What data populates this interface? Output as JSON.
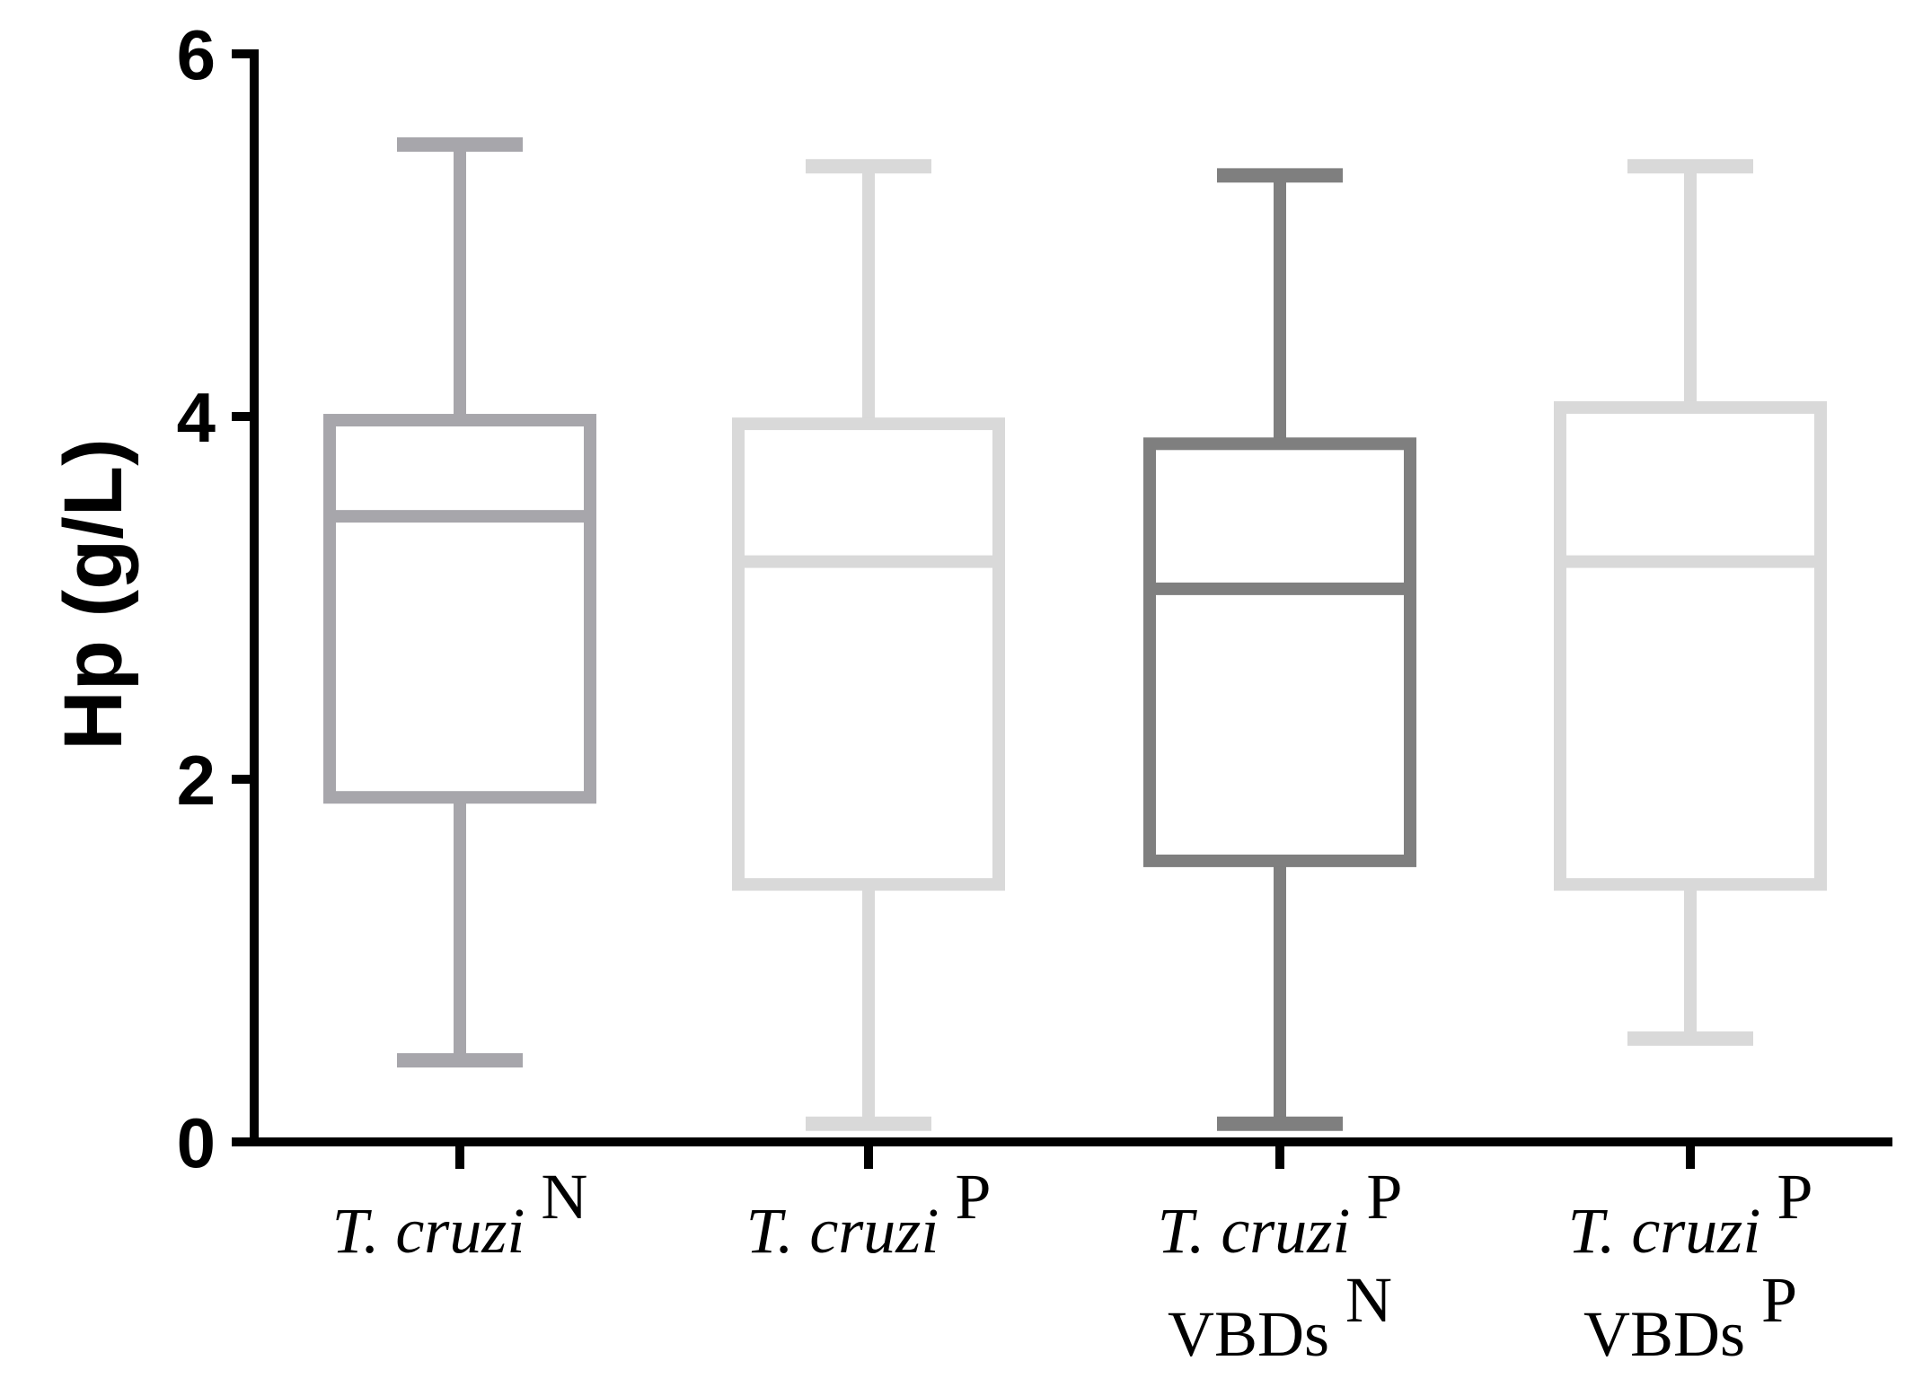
{
  "chart_data": {
    "type": "box",
    "ylabel": "Hp (g/L)",
    "ylim": [
      0,
      6
    ],
    "yticks": [
      "0",
      "2",
      "4",
      "6"
    ],
    "categories": [
      {
        "line1_italic": "T. cruzi",
        "line1_sup": "N",
        "line2": "",
        "line2_sup": ""
      },
      {
        "line1_italic": "T. cruzi",
        "line1_sup": "P",
        "line2": "",
        "line2_sup": ""
      },
      {
        "line1_italic": "T. cruzi",
        "line1_sup": "P",
        "line2": "VBDs",
        "line2_sup": "N"
      },
      {
        "line1_italic": "T. cruzi",
        "line1_sup": "P",
        "line2": "VBDs",
        "line2_sup": "P"
      }
    ],
    "boxes": [
      {
        "min": 0.45,
        "q1": 1.9,
        "median": 3.45,
        "q3": 3.98,
        "max": 5.5,
        "color": "#a7a6ab"
      },
      {
        "min": 0.1,
        "q1": 1.42,
        "median": 3.2,
        "q3": 3.96,
        "max": 5.38,
        "color": "#d9d9d9"
      },
      {
        "min": 0.1,
        "q1": 1.55,
        "median": 3.05,
        "q3": 3.85,
        "max": 5.33,
        "color": "#7f7f7f"
      },
      {
        "min": 0.57,
        "q1": 1.42,
        "median": 3.2,
        "q3": 4.05,
        "max": 5.38,
        "color": "#d9d9d9"
      }
    ],
    "grid": false
  }
}
